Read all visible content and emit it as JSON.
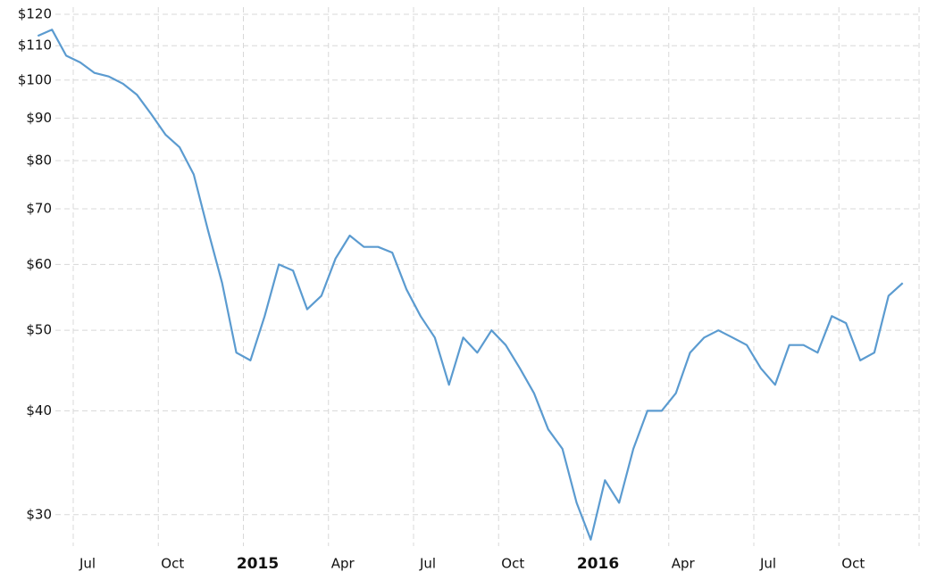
{
  "chart_data": {
    "type": "line",
    "log_scale": true,
    "grid": true,
    "x": [
      "2014-06",
      "2014-06",
      "2014-07",
      "2014-07",
      "2014-08",
      "2014-08",
      "2014-09",
      "2014-09",
      "2014-10",
      "2014-10",
      "2014-11",
      "2014-11",
      "2014-12",
      "2014-12",
      "2015-01",
      "2015-01",
      "2015-02",
      "2015-02",
      "2015-03",
      "2015-03",
      "2015-04",
      "2015-04",
      "2015-05",
      "2015-05",
      "2015-06",
      "2015-06",
      "2015-07",
      "2015-07",
      "2015-08",
      "2015-08",
      "2015-09",
      "2015-09",
      "2015-10",
      "2015-10",
      "2015-11",
      "2015-11",
      "2015-12",
      "2015-12",
      "2016-01",
      "2016-01",
      "2016-02",
      "2016-02",
      "2016-03",
      "2016-03",
      "2016-04",
      "2016-04",
      "2016-05",
      "2016-05",
      "2016-06",
      "2016-06",
      "2016-07",
      "2016-07",
      "2016-08",
      "2016-08",
      "2016-09",
      "2016-09",
      "2016-10",
      "2016-10",
      "2016-11",
      "2016-11",
      "2016-12",
      "2016-12"
    ],
    "series": [
      {
        "color": "#5b9bd0",
        "values": [
          113,
          115,
          107,
          105,
          102,
          101,
          99,
          96,
          91,
          86,
          83,
          77,
          66,
          57,
          47,
          46,
          52,
          60,
          59,
          53,
          55,
          61,
          65,
          63,
          63,
          62,
          56,
          52,
          49,
          43,
          49,
          47,
          50,
          48,
          45,
          42,
          38,
          36,
          31,
          28,
          33,
          31,
          36,
          40,
          40,
          42,
          47,
          49,
          50,
          49,
          48,
          45,
          43,
          48,
          48,
          47,
          52,
          51,
          46,
          47,
          55,
          57
        ]
      }
    ],
    "ylim": [
      27.5,
      120
    ],
    "yticks": [
      {
        "value": 30,
        "label": "$30"
      },
      {
        "value": 40,
        "label": "$40"
      },
      {
        "value": 50,
        "label": "$50"
      },
      {
        "value": 60,
        "label": "$60"
      },
      {
        "value": 70,
        "label": "$70"
      },
      {
        "value": 80,
        "label": "$80"
      },
      {
        "value": 90,
        "label": "$90"
      },
      {
        "value": 100,
        "label": "$100"
      },
      {
        "value": 110,
        "label": "$110"
      },
      {
        "value": 120,
        "label": "$120"
      }
    ],
    "xticks": [
      {
        "value": "2014-07",
        "label": "Jul"
      },
      {
        "value": "2014-10",
        "label": "Oct"
      },
      {
        "value": "2015-01",
        "label": "2015"
      },
      {
        "value": "2015-04",
        "label": "Apr"
      },
      {
        "value": "2015-07",
        "label": "Jul"
      },
      {
        "value": "2015-10",
        "label": "Oct"
      },
      {
        "value": "2016-01",
        "label": "2016"
      },
      {
        "value": "2016-04",
        "label": "Apr"
      },
      {
        "value": "2016-07",
        "label": "Jul"
      },
      {
        "value": "2016-10",
        "label": "Oct"
      }
    ]
  }
}
